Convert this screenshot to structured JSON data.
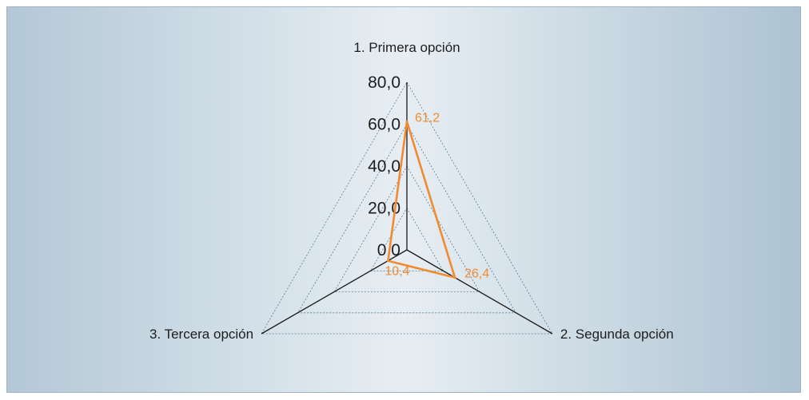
{
  "chart_data": {
    "type": "radar",
    "title": "",
    "categories": [
      "1. Primera opción",
      "2. Segunda opción",
      "3. Tercera opción"
    ],
    "series": [
      {
        "values": [
          61.2,
          26.4,
          10.4
        ],
        "value_labels": [
          "61,2",
          "26,4",
          "10,4"
        ]
      }
    ],
    "rlim": [
      0,
      80
    ],
    "ticks": [
      0,
      20,
      40,
      60,
      80
    ],
    "tick_labels": [
      "0,0",
      "20,0",
      "40,0",
      "60,0",
      "80,0"
    ],
    "grid": true,
    "legend": "none",
    "colors": {
      "series": "#f08b32",
      "axis": "#1a1a1a",
      "grid": "#5a7f94"
    }
  }
}
